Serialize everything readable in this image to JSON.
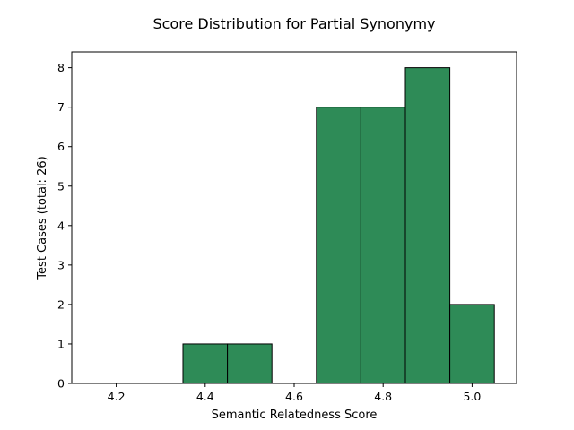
{
  "chart_data": {
    "type": "bar",
    "title": "Score Distribution for Partial Synonymy",
    "xlabel": "Semantic Relatedness Score",
    "ylabel": "Test Cases (total: 26)",
    "bins": [
      {
        "x0": 4.35,
        "x1": 4.45,
        "count": 1
      },
      {
        "x0": 4.45,
        "x1": 4.55,
        "count": 1
      },
      {
        "x0": 4.65,
        "x1": 4.75,
        "count": 7
      },
      {
        "x0": 4.75,
        "x1": 4.85,
        "count": 7
      },
      {
        "x0": 4.85,
        "x1": 4.95,
        "count": 8
      },
      {
        "x0": 4.95,
        "x1": 5.05,
        "count": 2
      }
    ],
    "xlim": [
      4.1,
      5.1
    ],
    "ylim": [
      0,
      8.4
    ],
    "xticks": [
      4.2,
      4.4,
      4.6,
      4.8,
      5.0
    ],
    "xtick_labels": [
      "4.2",
      "4.4",
      "4.6",
      "4.8",
      "5.0"
    ],
    "yticks": [
      0,
      1,
      2,
      3,
      4,
      5,
      6,
      7,
      8
    ],
    "ytick_labels": [
      "0",
      "1",
      "2",
      "3",
      "4",
      "5",
      "6",
      "7",
      "8"
    ],
    "bar_color": "#2e8b57",
    "edge_color": "#000000",
    "grid": false,
    "legend": "none"
  }
}
